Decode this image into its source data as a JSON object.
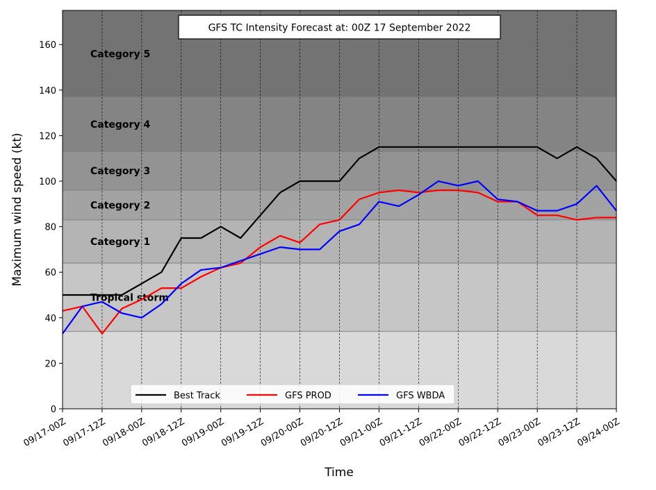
{
  "chart_data": {
    "type": "line",
    "title": "GFS TC Intensity Forecast at: 00Z 17 September 2022",
    "xlabel": "Time",
    "ylabel": "Maximum wind speed (kt)",
    "ylim": [
      0,
      175
    ],
    "yticks": [
      0,
      20,
      40,
      60,
      80,
      100,
      120,
      140,
      160
    ],
    "xticks": [
      "09/17-00Z",
      "09/17-12Z",
      "09/18-00Z",
      "09/18-12Z",
      "09/19-00Z",
      "09/19-12Z",
      "09/20-00Z",
      "09/20-12Z",
      "09/21-00Z",
      "09/21-12Z",
      "09/22-00Z",
      "09/22-12Z",
      "09/23-00Z",
      "09/23-12Z",
      "09/24-00Z"
    ],
    "x_step_hours": 6,
    "grid": "vertical dashed at x ticks",
    "legend_position": "bottom-center",
    "bands": [
      {
        "label": "",
        "from": 0,
        "to": 34,
        "color": "#d9d9d9"
      },
      {
        "label": "Tropical storm",
        "from": 34,
        "to": 64,
        "color": "#c6c6c6"
      },
      {
        "label": "Category 1",
        "from": 64,
        "to": 83,
        "color": "#b4b4b4"
      },
      {
        "label": "Category 2",
        "from": 83,
        "to": 96,
        "color": "#a3a3a3"
      },
      {
        "label": "Category 3",
        "from": 96,
        "to": 113,
        "color": "#939393"
      },
      {
        "label": "Category 4",
        "from": 113,
        "to": 137,
        "color": "#848484"
      },
      {
        "label": "Category 5",
        "from": 137,
        "to": 175,
        "color": "#737373"
      }
    ],
    "series": [
      {
        "name": "Best Track",
        "color": "#000000",
        "values": [
          50,
          50,
          50,
          50,
          55,
          60,
          75,
          75,
          80,
          75,
          85,
          95,
          100,
          100,
          100,
          110,
          115,
          115,
          115,
          115,
          115,
          115,
          115,
          115,
          115,
          110,
          115,
          110,
          100
        ]
      },
      {
        "name": "GFS PROD",
        "color": "#ff0000",
        "values": [
          43,
          45,
          33,
          44,
          48,
          53,
          53,
          58,
          62,
          64,
          71,
          76,
          73,
          81,
          83,
          92,
          95,
          96,
          95,
          96,
          96,
          95,
          91,
          91,
          85,
          85,
          83,
          84,
          84
        ]
      },
      {
        "name": "GFS WBDA",
        "color": "#0000ff",
        "values": [
          33,
          45,
          47,
          42,
          40,
          46,
          55,
          61,
          62,
          65,
          68,
          71,
          70,
          70,
          78,
          81,
          91,
          89,
          94,
          100,
          98,
          100,
          92,
          91,
          87,
          87,
          90,
          98,
          87
        ]
      }
    ]
  }
}
